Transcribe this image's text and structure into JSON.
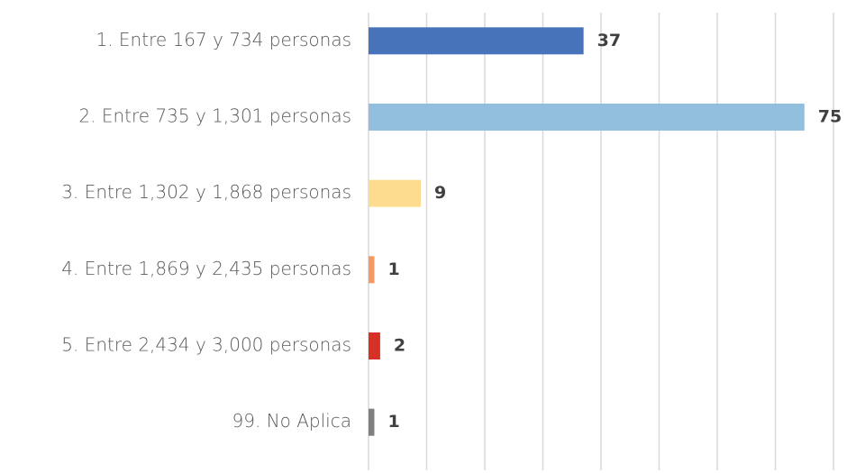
{
  "chart_data": {
    "type": "barh",
    "categories": [
      "1. Entre 167 y 734 personas",
      "2. Entre 735 y 1,301 personas",
      "3. Entre 1,302 y 1,868 personas",
      "4. Entre 1,869 y 2,435 personas",
      "5. Entre 2,434 y 3,000 personas",
      "99. No Aplica"
    ],
    "values": [
      37,
      75,
      9,
      1,
      2,
      1
    ],
    "colors": [
      "#4673b9",
      "#92bfdd",
      "#fddc8f",
      "#f79862",
      "#d73127",
      "#7f7f7f"
    ],
    "xlim": [
      0,
      80
    ],
    "xticks": [
      0,
      10,
      20,
      30,
      40,
      50,
      60,
      70,
      80
    ],
    "grid": true
  }
}
